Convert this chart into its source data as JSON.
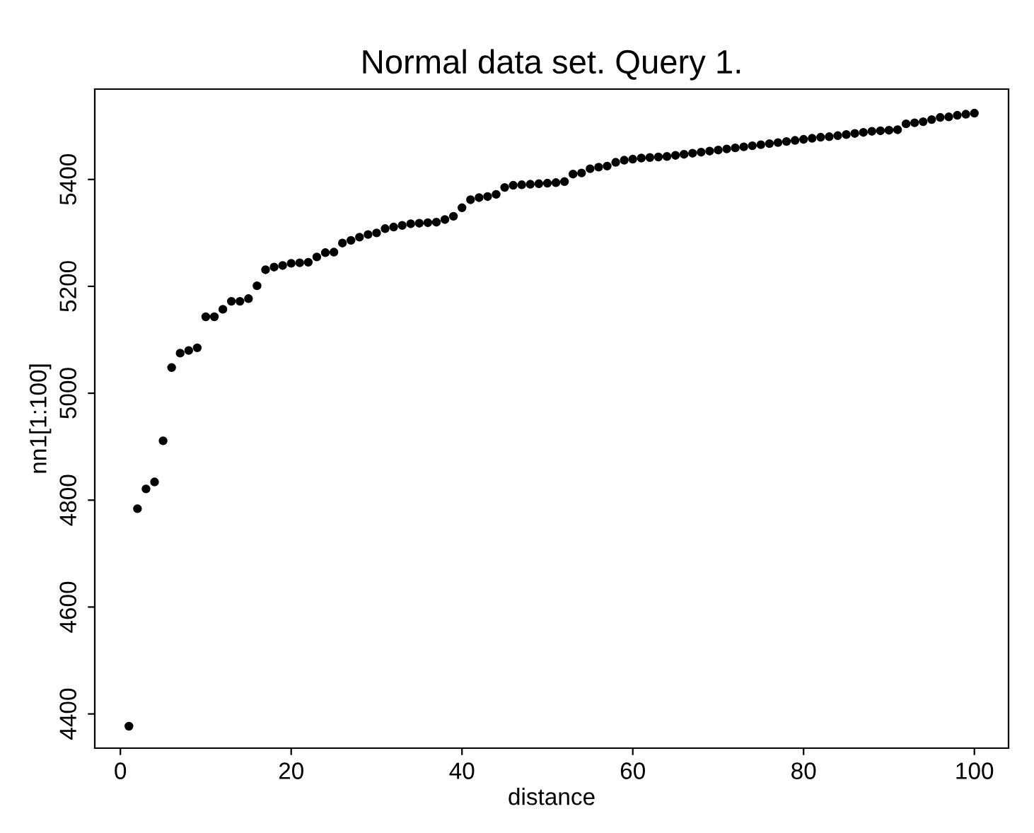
{
  "chart_data": {
    "type": "scatter",
    "title": "Normal data set. Query 1.",
    "xlabel": "distance",
    "ylabel": "nn1[1:100]",
    "x": [
      1,
      2,
      3,
      4,
      5,
      6,
      7,
      8,
      9,
      10,
      11,
      12,
      13,
      14,
      15,
      16,
      17,
      18,
      19,
      20,
      21,
      22,
      23,
      24,
      25,
      26,
      27,
      28,
      29,
      30,
      31,
      32,
      33,
      34,
      35,
      36,
      37,
      38,
      39,
      40,
      41,
      42,
      43,
      44,
      45,
      46,
      47,
      48,
      49,
      50,
      51,
      52,
      53,
      54,
      55,
      56,
      57,
      58,
      59,
      60,
      61,
      62,
      63,
      64,
      65,
      66,
      67,
      68,
      69,
      70,
      71,
      72,
      73,
      74,
      75,
      76,
      77,
      78,
      79,
      80,
      81,
      82,
      83,
      84,
      85,
      86,
      87,
      88,
      89,
      90,
      91,
      92,
      93,
      94,
      95,
      96,
      97,
      98,
      99,
      100
    ],
    "series": [
      {
        "color": "#000000",
        "values": [
          4377,
          4784,
          4821,
          4834,
          4911,
          5048,
          5075,
          5080,
          5085,
          5143,
          5143,
          5157,
          5172,
          5172,
          5177,
          5201,
          5231,
          5236,
          5239,
          5243,
          5244,
          5245,
          5255,
          5263,
          5264,
          5281,
          5286,
          5292,
          5297,
          5300,
          5308,
          5311,
          5314,
          5317,
          5318,
          5319,
          5320,
          5325,
          5331,
          5347,
          5362,
          5366,
          5368,
          5372,
          5385,
          5389,
          5390,
          5391,
          5392,
          5393,
          5394,
          5396,
          5410,
          5412,
          5420,
          5423,
          5425,
          5432,
          5436,
          5438,
          5440,
          5441,
          5442,
          5443,
          5445,
          5447,
          5449,
          5451,
          5453,
          5455,
          5457,
          5459,
          5461,
          5463,
          5465,
          5467,
          5469,
          5471,
          5473,
          5475,
          5477,
          5479,
          5480,
          5482,
          5484,
          5486,
          5488,
          5490,
          5491,
          5492,
          5493,
          5504,
          5506,
          5508,
          5512,
          5516,
          5517,
          5520,
          5522,
          5524
        ]
      }
    ],
    "xlim": [
      -3,
      104
    ],
    "ylim": [
      4336,
      5569
    ],
    "xticks": [
      0,
      20,
      40,
      60,
      80,
      100
    ],
    "yticks": [
      4400,
      4600,
      4800,
      5000,
      5200,
      5400
    ],
    "marker": "circle",
    "grid": false,
    "legend": false
  }
}
